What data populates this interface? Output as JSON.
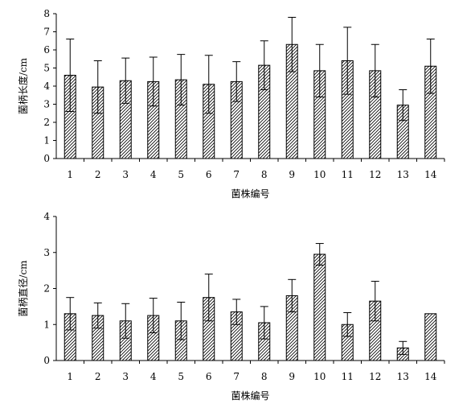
{
  "chart_data": [
    {
      "type": "bar",
      "xlabel": "菌株编号",
      "ylabel": "菌柄长度/cm",
      "categories": [
        "1",
        "2",
        "3",
        "4",
        "5",
        "6",
        "7",
        "8",
        "9",
        "10",
        "11",
        "12",
        "13",
        "14"
      ],
      "values": [
        4.6,
        3.95,
        4.3,
        4.25,
        4.35,
        4.1,
        4.25,
        5.15,
        6.3,
        4.85,
        5.4,
        4.85,
        2.95,
        5.1
      ],
      "error": [
        2.0,
        1.45,
        1.25,
        1.35,
        1.4,
        1.6,
        1.1,
        1.35,
        1.5,
        1.45,
        1.85,
        1.45,
        0.85,
        1.5
      ],
      "ylim": [
        0,
        8
      ],
      "yticks": [
        "0",
        "1",
        "2",
        "3",
        "4",
        "5",
        "6",
        "7",
        "8"
      ],
      "error_bars": true,
      "bar_pattern": "diagonal-hatch",
      "grid": false
    },
    {
      "type": "bar",
      "xlabel": "菌株编号",
      "ylabel": "菌柄直径/cm",
      "categories": [
        "1",
        "2",
        "3",
        "4",
        "5",
        "6",
        "7",
        "8",
        "9",
        "10",
        "11",
        "12",
        "13",
        "14"
      ],
      "values": [
        1.3,
        1.25,
        1.1,
        1.25,
        1.1,
        1.75,
        1.35,
        1.05,
        1.8,
        2.95,
        1.0,
        1.65,
        0.35,
        1.3
      ],
      "error": [
        0.45,
        0.35,
        0.48,
        0.48,
        0.52,
        0.65,
        0.35,
        0.45,
        0.45,
        0.3,
        0.33,
        0.55,
        0.18,
        0.0
      ],
      "ylim": [
        0,
        4
      ],
      "yticks": [
        "0",
        "1",
        "2",
        "3",
        "4"
      ],
      "error_bars": true,
      "bar_pattern": "diagonal-hatch",
      "grid": false
    }
  ]
}
